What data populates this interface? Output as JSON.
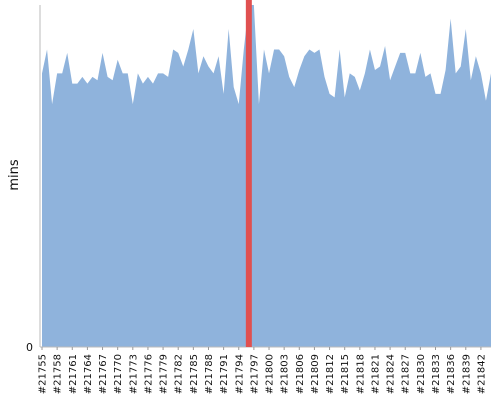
{
  "chart_data": {
    "type": "area",
    "y_label": "mins",
    "color": "#8fb3dc",
    "highlight_color": "#e05050",
    "highlight_index": 41,
    "categories": [
      "#21755",
      null,
      null,
      "#21758",
      null,
      null,
      "#21761",
      null,
      null,
      "#21764",
      null,
      null,
      "#21767",
      null,
      null,
      "#21770",
      null,
      null,
      "#21773",
      null,
      null,
      "#21776",
      null,
      null,
      "#21779",
      null,
      null,
      "#21782",
      null,
      null,
      "#21785",
      null,
      null,
      "#21788",
      null,
      null,
      "#21791",
      null,
      null,
      "#21794",
      null,
      null,
      "#21797",
      null,
      null,
      "#21800",
      null,
      null,
      "#21803",
      null,
      null,
      "#21806",
      null,
      null,
      "#21809",
      null,
      null,
      "#21812",
      null,
      null,
      "#21815",
      null,
      null,
      "#21818",
      null,
      null,
      "#21821",
      null,
      null,
      "#21824",
      null,
      null,
      "#21827",
      null,
      null,
      "#21830",
      null,
      null,
      "#21833",
      null,
      null,
      "#21836",
      null,
      null,
      "#21839",
      null,
      null,
      "#21842",
      null,
      null
    ],
    "values": [
      80,
      87,
      71,
      80,
      80,
      86,
      77,
      77,
      79,
      77,
      79,
      78,
      86,
      79,
      78,
      84,
      80,
      80,
      71,
      80,
      77,
      79,
      77,
      80,
      80,
      79,
      87,
      86,
      82,
      87,
      93,
      80,
      85,
      82,
      80,
      85,
      74,
      93,
      76,
      71,
      87,
      100,
      100,
      71,
      87,
      80,
      87,
      87,
      85,
      79,
      76,
      81,
      85,
      87,
      86,
      87,
      79,
      74,
      73,
      87,
      73,
      80,
      79,
      75,
      80,
      87,
      81,
      82,
      88,
      78,
      82,
      86,
      86,
      80,
      80,
      86,
      79,
      80,
      74,
      74,
      81,
      96,
      80,
      82,
      93,
      78,
      85,
      80,
      72,
      80
    ],
    "ylim": [
      0,
      100
    ],
    "yticks": [
      0
    ]
  }
}
